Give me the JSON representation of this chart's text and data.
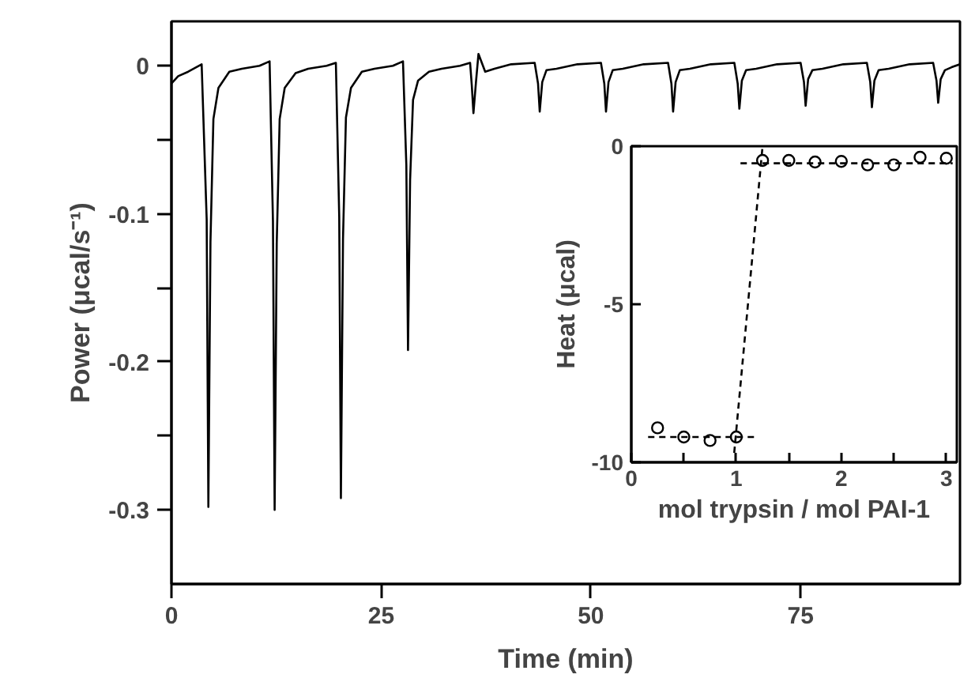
{
  "chart_data": [
    {
      "type": "line",
      "xlabel": "Time (min)",
      "ylabel": "Power (μcal/s⁻¹)",
      "color": "#000000",
      "xlim": [
        0,
        94
      ],
      "ylim": [
        -0.35,
        0.03
      ],
      "xticks": [
        0,
        25,
        50,
        75
      ],
      "yticks": [
        -0.3,
        {
          "value": -0.25,
          "label": null
        },
        -0.2,
        {
          "value": -0.15,
          "label": null
        },
        -0.1,
        {
          "value": -0.05,
          "label": null
        },
        0
      ],
      "grid": false,
      "x": [
        0,
        0.8,
        2,
        3.6,
        4.2,
        4.4,
        4.65,
        5.0,
        5.6,
        6.9,
        8.4,
        10.5,
        11.7,
        12.1,
        12.3,
        12.55,
        12.9,
        13.5,
        14.8,
        16.3,
        18.5,
        19.6,
        20.0,
        20.2,
        20.45,
        20.8,
        21.4,
        22.7,
        24.2,
        26.4,
        27.6,
        28.0,
        28.2,
        28.45,
        28.8,
        29.4,
        30.7,
        32.2,
        34.4,
        35.6,
        35.8,
        36.0,
        36.3,
        36.6,
        37.4,
        38.5,
        40.5,
        43.3,
        43.7,
        43.9,
        44.2,
        44.7,
        45.9,
        48.4,
        51.2,
        51.6,
        51.8,
        52.1,
        52.6,
        53.8,
        56.3,
        59.2,
        59.6,
        59.8,
        60.1,
        60.6,
        61.8,
        64.3,
        67.1,
        67.5,
        67.7,
        68.0,
        68.5,
        69.7,
        72.2,
        75.0,
        75.4,
        75.6,
        75.9,
        76.4,
        77.6,
        80.1,
        82.9,
        83.3,
        83.5,
        83.8,
        84.3,
        85.5,
        88.0,
        90.8,
        91.2,
        91.4,
        91.7,
        92.2,
        93.0,
        94
      ],
      "values": [
        -0.012,
        -0.007,
        -0.004,
        0.001,
        -0.104,
        -0.298,
        -0.119,
        -0.036,
        -0.015,
        -0.004,
        -0.002,
        0.0,
        0.003,
        -0.105,
        -0.3,
        -0.12,
        -0.036,
        -0.015,
        -0.005,
        -0.002,
        0.0,
        0.002,
        -0.102,
        -0.292,
        -0.117,
        -0.035,
        -0.015,
        -0.004,
        -0.002,
        0.0,
        0.003,
        -0.067,
        -0.192,
        -0.077,
        -0.023,
        -0.01,
        -0.004,
        -0.002,
        0.0,
        0.002,
        -0.013,
        -0.032,
        -0.011,
        0.008,
        -0.004,
        -0.002,
        0.001,
        0.002,
        -0.012,
        -0.031,
        -0.011,
        -0.003,
        -0.002,
        0.001,
        0.002,
        -0.012,
        -0.031,
        -0.011,
        -0.003,
        -0.002,
        0.001,
        0.002,
        -0.012,
        -0.031,
        -0.011,
        -0.003,
        -0.002,
        0.001,
        0.002,
        -0.012,
        -0.029,
        -0.01,
        -0.003,
        -0.002,
        0.001,
        0.002,
        -0.011,
        -0.027,
        -0.009,
        -0.003,
        -0.002,
        0.001,
        0.002,
        -0.011,
        -0.028,
        -0.01,
        -0.003,
        -0.002,
        0.001,
        0.002,
        -0.01,
        -0.025,
        -0.009,
        -0.003,
        -0.001,
        0.001
      ]
    },
    {
      "type": "scatter",
      "xlabel": "mol trypsin / mol PAI-1",
      "ylabel": "Heat (μcal)",
      "xlim": [
        0,
        3.1
      ],
      "ylim": [
        -10,
        0
      ],
      "xticks": [
        0,
        {
          "value": 0.5,
          "label": null
        },
        1,
        {
          "value": 1.5,
          "label": null
        },
        2,
        {
          "value": 2.5,
          "label": null
        },
        3
      ],
      "yticks": [
        -10,
        -5,
        0
      ],
      "grid": false,
      "series": [
        {
          "type": "scatter",
          "marker": "circle",
          "color": "#000000",
          "x": [
            0.25,
            0.5,
            0.75,
            1.0,
            1.25,
            1.5,
            1.75,
            2.0,
            2.25,
            2.5,
            2.75,
            3.0
          ],
          "values": [
            -8.91,
            -9.2,
            -9.31,
            -9.2,
            -0.45,
            -0.45,
            -0.5,
            -0.48,
            -0.59,
            -0.59,
            -0.35,
            -0.38
          ]
        },
        {
          "type": "line",
          "marker": "none",
          "line_style": "dashed",
          "color": "#000000",
          "x": [
            0.16,
            1.17
          ],
          "values": [
            -9.2,
            -9.2
          ]
        },
        {
          "type": "line",
          "marker": "none",
          "line_style": "dashed",
          "color": "#000000",
          "x": [
            0.98,
            1.25
          ],
          "values": [
            -9.7,
            0
          ]
        },
        {
          "type": "line",
          "marker": "none",
          "line_style": "dashed",
          "color": "#000000",
          "x": [
            1.04,
            3.06
          ],
          "values": [
            -0.54,
            -0.54
          ]
        }
      ]
    }
  ]
}
